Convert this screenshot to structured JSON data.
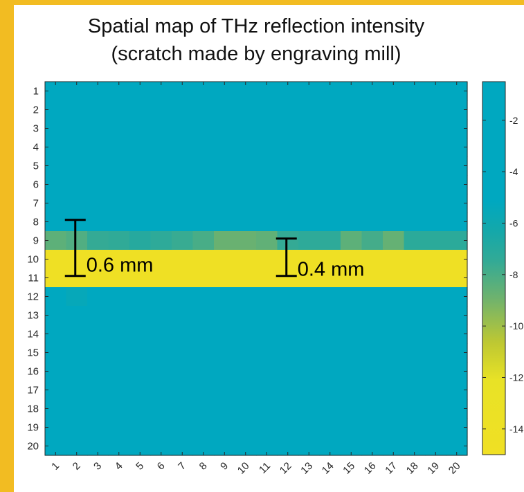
{
  "colors": {
    "background_frame": "#f2bc22",
    "cyan": "#00a8c0",
    "yellow": "#f0e024"
  },
  "chart_data": {
    "type": "heatmap",
    "title": [
      "Spatial map of THz reflection intensity",
      "(scratch made by engraving mill)"
    ],
    "xlabel": "",
    "ylabel": "",
    "x_categories": [
      "1",
      "2",
      "3",
      "4",
      "5",
      "6",
      "7",
      "8",
      "9",
      "10",
      "11",
      "12",
      "13",
      "14",
      "15",
      "16",
      "17",
      "18",
      "19",
      "20"
    ],
    "y_categories": [
      "1",
      "2",
      "3",
      "4",
      "5",
      "6",
      "7",
      "8",
      "9",
      "10",
      "11",
      "12",
      "13",
      "14",
      "15",
      "16",
      "17",
      "18",
      "19",
      "20"
    ],
    "grid": false,
    "colorbar": {
      "colormap": "parula-like (cyan to yellow)",
      "range": [
        -15,
        -0.5
      ],
      "tick_values": [
        -2,
        -4,
        -6,
        -8,
        -10,
        -12,
        -14
      ],
      "tick_labels": [
        "-2",
        "-4",
        "-6",
        "-8",
        "-10",
        "-12",
        "-14"
      ]
    },
    "default_value": -1,
    "rows": [
      {
        "row": 9,
        "values": [
          -8.5,
          -8.2,
          -7.5,
          -7.4,
          -7.0,
          -7.3,
          -7.6,
          -8.0,
          -8.8,
          -8.8,
          -8.6,
          -7.5,
          -7.3,
          -7.3,
          -8.5,
          -7.9,
          -8.7,
          -7.2,
          -7.2,
          -7.2
        ]
      },
      {
        "row": 10,
        "values": [
          -14.5,
          -14.5,
          -14.5,
          -14.5,
          -14.5,
          -14.5,
          -14.5,
          -14.5,
          -14.5,
          -14.5,
          -14.5,
          -14.5,
          -14.5,
          -14.5,
          -14.5,
          -14.5,
          -14.5,
          -14.5,
          -14.5,
          -14.5
        ]
      },
      {
        "row": 11,
        "values": [
          -14.5,
          -14.5,
          -14.5,
          -14.5,
          -14.5,
          -14.5,
          -14.5,
          -14.5,
          -14.5,
          -14.5,
          -14.5,
          -14.5,
          -14.5,
          -14.5,
          -14.5,
          -14.5,
          -14.5,
          -14.5,
          -14.5,
          -14.5
        ]
      },
      {
        "row": 12,
        "values": [
          -1,
          -5.5,
          -1,
          -1,
          -1,
          -1,
          -1,
          -1,
          -1,
          -1,
          -1,
          -1,
          -1,
          -1,
          -1,
          -1,
          -1,
          -1,
          -1,
          -1
        ]
      }
    ],
    "annotations": [
      {
        "label": "0.6 mm",
        "col": 2,
        "row_start": 8.4,
        "row_end": 11.4
      },
      {
        "label": "0.4 mm",
        "col": 12,
        "row_start": 9.4,
        "row_end": 11.4
      }
    ]
  }
}
